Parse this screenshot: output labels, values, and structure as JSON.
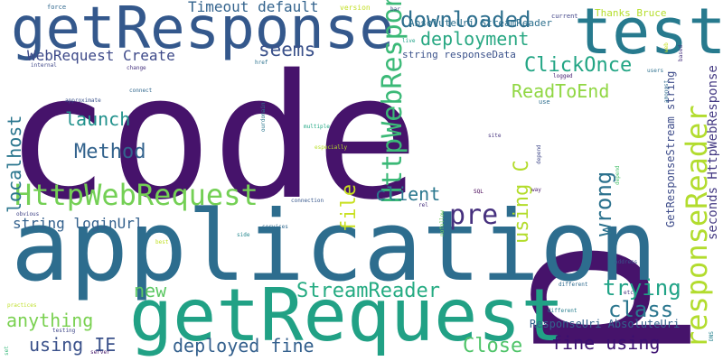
{
  "background": "#ffffff",
  "palette": [
    "#440154",
    "#482878",
    "#3e4989",
    "#31688e",
    "#26828e",
    "#1f9e89",
    "#35b779",
    "#6ece58",
    "#b5de2b",
    "#fde725"
  ],
  "words": [
    {
      "text": "code",
      "color": "#46136b"
    },
    {
      "text": "p",
      "color": "#46136b"
    },
    {
      "text": "application",
      "color": "#2d6d8e"
    },
    {
      "text": "getRequest",
      "color": "#21a185"
    },
    {
      "text": "getResponse",
      "color": "#34588c"
    },
    {
      "text": "test",
      "color": "#277a8e"
    },
    {
      "text": "responseReader",
      "color": "#b2dc2e"
    },
    {
      "text": "HttpWebRequest",
      "color": "#74d055"
    },
    {
      "text": "HttpWebResponse",
      "color": "#3bb977"
    },
    {
      "text": "downloaded",
      "color": "#2e6f8e"
    },
    {
      "text": "deployment",
      "color": "#29a883"
    },
    {
      "text": "ClickOnce",
      "color": "#22a584"
    },
    {
      "text": "ReadToEnd",
      "color": "#90d743"
    },
    {
      "text": "seems",
      "color": "#3b528b"
    },
    {
      "text": "Timeout default",
      "color": "#33638d"
    },
    {
      "text": "WebRequest Create",
      "color": "#3e4a89"
    },
    {
      "text": "launch",
      "color": "#20918c"
    },
    {
      "text": "Method",
      "color": "#33638d"
    },
    {
      "text": "localhost",
      "color": "#2a768e"
    },
    {
      "text": "client",
      "color": "#2a778e"
    },
    {
      "text": "pre",
      "color": "#46307e"
    },
    {
      "text": "using C",
      "color": "#b3dc2b"
    },
    {
      "text": "file",
      "color": "#c8e020"
    },
    {
      "text": "wrong",
      "color": "#2c728e"
    },
    {
      "text": "class",
      "color": "#2a768e"
    },
    {
      "text": "trying",
      "color": "#20a386"
    },
    {
      "text": "new",
      "color": "#5cc863"
    },
    {
      "text": "StreamReader",
      "color": "#25ab82"
    },
    {
      "text": "string loginUrl",
      "color": "#34618d"
    },
    {
      "text": "anything",
      "color": "#7ad151"
    },
    {
      "text": "using IE",
      "color": "#3b528b"
    },
    {
      "text": "deployed fine",
      "color": "#34608d"
    },
    {
      "text": "Close",
      "color": "#50c46a"
    },
    {
      "text": "fine using",
      "color": "#3b0f70"
    },
    {
      "text": "seconds HttpWebResponse",
      "color": "#443a83"
    },
    {
      "text": "GetResponseStream string",
      "color": "#3e4c8a"
    },
    {
      "text": "ResponseUri AbsoluteUri",
      "color": "#33638d"
    },
    {
      "text": "AbsoluteUri StreamReader",
      "color": "#2d708e"
    },
    {
      "text": "string responseData",
      "color": "#3b528b"
    },
    {
      "text": "Thanks Bruce",
      "color": "#b5de2b"
    },
    {
      "text": "version",
      "color": "#c2df23"
    },
    {
      "text": "force",
      "color": "#31688e"
    },
    {
      "text": "current",
      "color": "#404387"
    },
    {
      "text": "bar",
      "color": "#414487"
    },
    {
      "text": "web",
      "color": "#c5e021"
    },
    {
      "text": "based",
      "color": "#46327e"
    },
    {
      "text": "users",
      "color": "#2d708e"
    },
    {
      "text": "logged",
      "color": "#482173"
    },
    {
      "text": "amongst",
      "color": "#306a8e"
    },
    {
      "text": "use",
      "color": "#2e6e8e"
    },
    {
      "text": "live",
      "color": "#1fa187"
    },
    {
      "text": "href",
      "color": "#2c728e"
    },
    {
      "text": "internal",
      "color": "#3f4788"
    },
    {
      "text": "change",
      "color": "#46327e"
    },
    {
      "text": "approximate",
      "color": "#3b528b"
    },
    {
      "text": "connect",
      "color": "#31688e"
    },
    {
      "text": "ourdomain",
      "color": "#2a788e"
    },
    {
      "text": "multiple",
      "color": "#22a884"
    },
    {
      "text": "especially",
      "color": "#b8de29"
    },
    {
      "text": "site",
      "color": "#46337f"
    },
    {
      "text": "connection",
      "color": "#38588c"
    },
    {
      "text": "obvious",
      "color": "#414487"
    },
    {
      "text": "SQL",
      "color": "#440154"
    },
    {
      "text": "way",
      "color": "#48186a"
    },
    {
      "text": "depend",
      "color": "#3f4889"
    },
    {
      "text": "depend",
      "color": "#4ac16d"
    },
    {
      "text": "rel",
      "color": "#46317e"
    },
    {
      "text": "services",
      "color": "#30698e"
    },
    {
      "text": "nofollow",
      "color": "#6ccd5a"
    },
    {
      "text": "side",
      "color": "#24878e"
    },
    {
      "text": "best",
      "color": "#c0df25"
    },
    {
      "text": "address",
      "color": "#3b528b"
    },
    {
      "text": "different",
      "color": "#2f6b8e"
    },
    {
      "text": "etc",
      "color": "#46337f"
    },
    {
      "text": "practices",
      "color": "#bddf26"
    },
    {
      "text": "testing",
      "color": "#3f4788"
    },
    {
      "text": "server",
      "color": "#481a6c"
    },
    {
      "text": "set",
      "color": "#35b779"
    },
    {
      "text": "different",
      "color": "#277f8e"
    },
    {
      "text": "DNS",
      "color": "#26828e"
    }
  ]
}
